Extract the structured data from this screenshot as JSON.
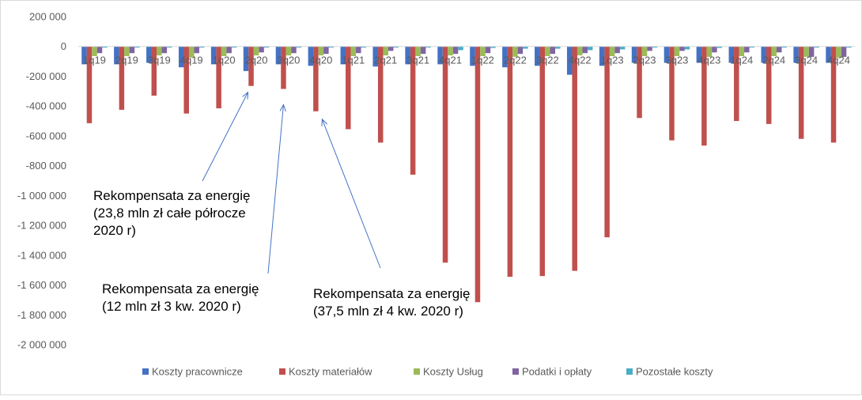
{
  "chart_data": {
    "type": "bar",
    "categories": [
      "1q19",
      "2q19",
      "3q19",
      "4q19",
      "1q20",
      "2q20",
      "3q20",
      "4q20",
      "1q21",
      "2q21",
      "3q21",
      "4q21",
      "1q22",
      "2q22",
      "3q22",
      "4q22",
      "1q23",
      "2q23",
      "3q23",
      "4q23",
      "1q24",
      "2q24",
      "3q24",
      "4q24"
    ],
    "series": [
      {
        "name": "Koszty pracownicze",
        "color": "#4472c4",
        "values": [
          -120000,
          -120000,
          -110000,
          -140000,
          -120000,
          -165000,
          -120000,
          -130000,
          -120000,
          -135000,
          -120000,
          -120000,
          -130000,
          -140000,
          -130000,
          -190000,
          -130000,
          -110000,
          -110000,
          -110000,
          -110000,
          -110000,
          -110000,
          -110000
        ]
      },
      {
        "name": "Koszty materiałów",
        "color": "#c0504d",
        "values": [
          -515000,
          -425000,
          -330000,
          -450000,
          -415000,
          -265000,
          -285000,
          -435000,
          -555000,
          -645000,
          -860000,
          -1450000,
          -1715000,
          -1545000,
          -1540000,
          -1505000,
          -1280000,
          -480000,
          -630000,
          -665000,
          -500000,
          -520000,
          -620000,
          -645000
        ]
      },
      {
        "name": "Koszty Usług",
        "color": "#9bbb59",
        "values": [
          -65000,
          -65000,
          -60000,
          -75000,
          -65000,
          -60000,
          -60000,
          -60000,
          -65000,
          -60000,
          -65000,
          -60000,
          -65000,
          -70000,
          -65000,
          -60000,
          -65000,
          -65000,
          -65000,
          -70000,
          -65000,
          -65000,
          -70000,
          -75000
        ]
      },
      {
        "name": "Podatki i opłaty",
        "color": "#8064a2",
        "values": [
          -45000,
          -45000,
          -45000,
          -45000,
          -45000,
          -40000,
          -45000,
          -50000,
          -45000,
          -30000,
          -50000,
          -50000,
          -45000,
          -50000,
          -50000,
          -45000,
          -45000,
          -30000,
          -30000,
          -40000,
          -40000,
          -40000,
          -70000,
          -70000
        ]
      },
      {
        "name": "Pozostałe koszty",
        "color": "#4bacc6",
        "values": [
          -8000,
          -8000,
          -8000,
          -8000,
          -8000,
          -8000,
          -8000,
          -8000,
          -8000,
          -8000,
          -8000,
          -25000,
          -10000,
          -15000,
          -15000,
          -25000,
          -20000,
          -8000,
          -20000,
          -10000,
          -8000,
          -8000,
          -8000,
          -8000
        ]
      }
    ],
    "ylim": [
      -2000000,
      200000
    ],
    "ytick_labels": [
      "200 000",
      "0",
      "-200 000",
      "-400 000",
      "-600 000",
      "-800 000",
      "-1 000 000",
      "-1 200 000",
      "-1 400 000",
      "-1 600 000",
      "-1 800 000",
      "-2 000 000"
    ],
    "ytick_values": [
      200000,
      0,
      -200000,
      -400000,
      -600000,
      -800000,
      -1000000,
      -1200000,
      -1400000,
      -1600000,
      -1800000,
      -2000000
    ],
    "grid": false,
    "legend_position": "bottom",
    "annotations": [
      {
        "lines": [
          "Rekompensata za energię",
          "(23,8 mln zł całe półrocze",
          "2020 r)"
        ],
        "category": "2q20"
      },
      {
        "lines": [
          "Rekompensata za energię",
          "(12 mln zł 3 kw. 2020 r)"
        ],
        "category": "3q20"
      },
      {
        "lines": [
          "Rekompensata za energię",
          "(37,5 mln zł 4 kw. 2020 r)"
        ],
        "category": "4q20"
      }
    ]
  }
}
